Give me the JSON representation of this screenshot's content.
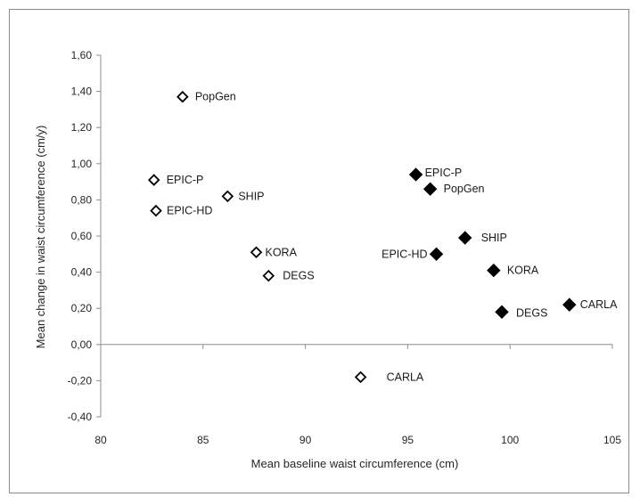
{
  "chart_data": {
    "type": "scatter",
    "title": "",
    "xlabel": "Mean baseline waist circumference (cm)",
    "ylabel": "Mean change in waist circumference (cm/y)",
    "xlim": [
      80,
      105
    ],
    "ylim": [
      -0.4,
      1.6
    ],
    "x_ticks": [
      80,
      85,
      90,
      95,
      100,
      105
    ],
    "x_tick_labels": [
      "80",
      "85",
      "90",
      "95",
      "100",
      "105"
    ],
    "y_ticks": [
      -0.4,
      -0.2,
      0,
      0.2,
      0.4,
      0.6,
      0.8,
      1.0,
      1.2,
      1.4,
      1.6
    ],
    "y_tick_labels": [
      "-0,40",
      "-0,20",
      "0,00",
      "0,20",
      "0,40",
      "0,60",
      "0,80",
      "1,00",
      "1,20",
      "1,40",
      "1,60"
    ],
    "grid": false,
    "series": [
      {
        "marker": "open-diamond",
        "color": "#000000",
        "points": [
          {
            "label": "PopGen",
            "x": 84.0,
            "y": 1.37
          },
          {
            "label": "EPIC-P",
            "x": 82.6,
            "y": 0.91
          },
          {
            "label": "SHIP",
            "x": 86.2,
            "y": 0.82
          },
          {
            "label": "EPIC-HD",
            "x": 82.7,
            "y": 0.74
          },
          {
            "label": "KORA",
            "x": 87.6,
            "y": 0.51
          },
          {
            "label": "DEGS",
            "x": 88.2,
            "y": 0.38
          },
          {
            "label": "CARLA",
            "x": 92.7,
            "y": -0.18
          }
        ]
      },
      {
        "marker": "filled-diamond",
        "color": "#000000",
        "points": [
          {
            "label": "EPIC-P",
            "x": 95.4,
            "y": 0.94
          },
          {
            "label": "PopGen",
            "x": 96.1,
            "y": 0.86
          },
          {
            "label": "SHIP",
            "x": 97.8,
            "y": 0.59
          },
          {
            "label": "EPIC-HD",
            "x": 96.4,
            "y": 0.5
          },
          {
            "label": "KORA",
            "x": 99.2,
            "y": 0.41
          },
          {
            "label": "CARLA",
            "x": 102.9,
            "y": 0.22
          },
          {
            "label": "DEGS",
            "x": 99.6,
            "y": 0.18
          }
        ]
      }
    ]
  }
}
